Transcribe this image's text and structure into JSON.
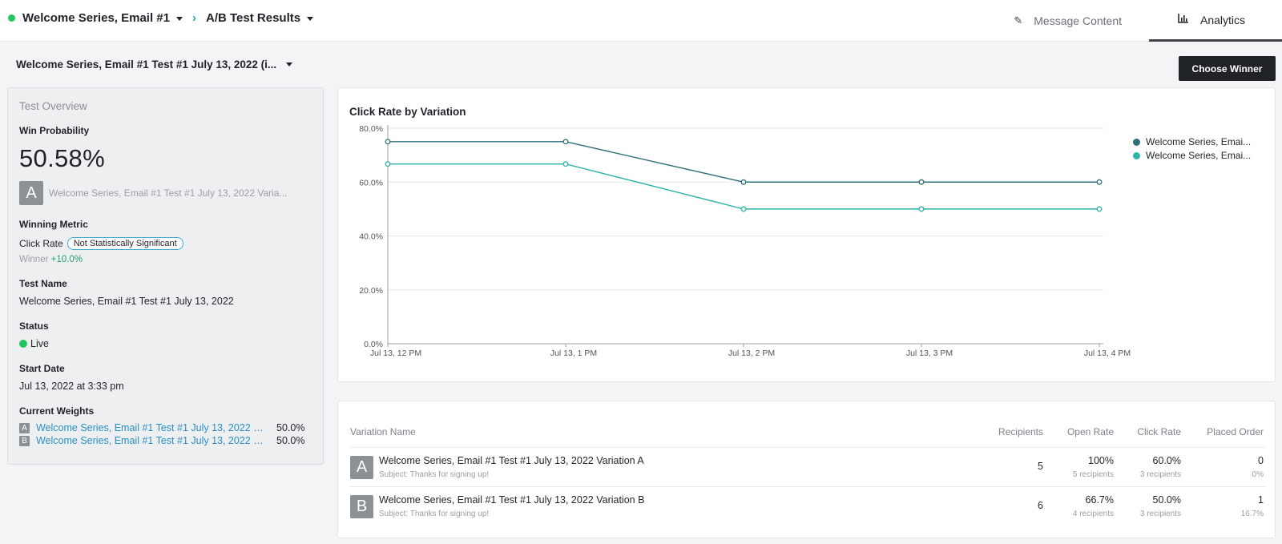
{
  "header": {
    "message_name": "Welcome Series, Email #1",
    "page_name": "A/B Test Results",
    "tabs": [
      {
        "label": "Message Content",
        "icon": "pencil-icon"
      },
      {
        "label": "Analytics",
        "icon": "bar-chart-icon"
      }
    ]
  },
  "test_selector": {
    "label": "Welcome Series, Email #1 Test #1 July 13, 2022 (i..."
  },
  "choose_winner_label": "Choose Winner",
  "overview": {
    "title": "Test Overview",
    "win_probability_label": "Win Probability",
    "win_probability": "50.58%",
    "leading_variation_letter": "A",
    "leading_variation_name": "Welcome Series, Email #1 Test #1 July 13, 2022 Varia...",
    "winning_metric_label": "Winning Metric",
    "winning_metric": "Click Rate",
    "significance_badge": "Not Statistically Significant",
    "winner_label": "Winner",
    "winner_lift": "+10.0%",
    "test_name_label": "Test Name",
    "test_name": "Welcome Series, Email #1 Test #1 July 13, 2022",
    "status_label": "Status",
    "status": "Live",
    "start_date_label": "Start Date",
    "start_date": "Jul 13, 2022 at 3:33 pm",
    "weights_label": "Current Weights",
    "weights": [
      {
        "letter": "A",
        "name": "Welcome Series, Email #1 Test #1 July 13, 2022 Va...",
        "pct": "50.0%"
      },
      {
        "letter": "B",
        "name": "Welcome Series, Email #1 Test #1 July 13, 2022 Va...",
        "pct": "50.0%"
      }
    ]
  },
  "chart_data": {
    "type": "line",
    "title": "Click Rate by Variation",
    "categories": [
      "Jul 13, 12 PM",
      "Jul 13, 1 PM",
      "Jul 13, 2 PM",
      "Jul 13, 3 PM",
      "Jul 13, 4 PM"
    ],
    "yticks": [
      "0.0%",
      "20.0%",
      "40.0%",
      "60.0%",
      "80.0%"
    ],
    "ylim": [
      0,
      80
    ],
    "grid": true,
    "legend_position": "top-right",
    "series": [
      {
        "name": "Welcome Series, Emai...",
        "color": "#2f6f78",
        "values": [
          75,
          75,
          60,
          60,
          60
        ]
      },
      {
        "name": "Welcome Series, Emai...",
        "color": "#2fb3a8",
        "values": [
          66.7,
          66.7,
          50,
          50,
          50
        ]
      }
    ]
  },
  "table": {
    "headers": {
      "name": "Variation Name",
      "recipients": "Recipients",
      "open_rate": "Open Rate",
      "click_rate": "Click Rate",
      "placed_order": "Placed Order"
    },
    "rows": [
      {
        "letter": "A",
        "name": "Welcome Series, Email #1 Test #1 July 13, 2022 Variation A",
        "subject": "Subject: Thanks for signing up!",
        "recipients": "5",
        "open_rate": "100%",
        "open_sub": "5 recipients",
        "click_rate": "60.0%",
        "click_sub": "3 recipients",
        "placed_order": "0",
        "placed_sub": "0%"
      },
      {
        "letter": "B",
        "name": "Welcome Series, Email #1 Test #1 July 13, 2022 Variation B",
        "subject": "Subject: Thanks for signing up!",
        "recipients": "6",
        "open_rate": "66.7%",
        "open_sub": "4 recipients",
        "click_rate": "50.0%",
        "click_sub": "3 recipients",
        "placed_order": "1",
        "placed_sub": "16.7%"
      }
    ]
  }
}
